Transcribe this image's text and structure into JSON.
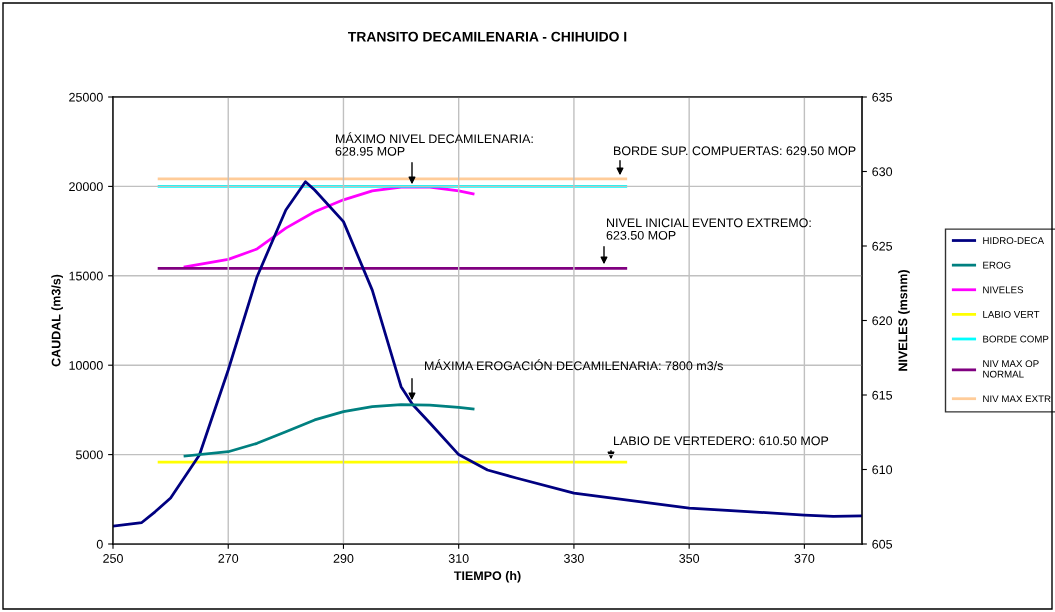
{
  "chart_data": {
    "type": "line",
    "title": "TRANSITO DECAMILENARIA - CHIHUIDO I",
    "xlabel": "TIEMPO (h)",
    "ylabel": "CAUDAL (m3/s)",
    "y2label": "NIVELES (msnm)",
    "xlim": [
      250,
      380
    ],
    "xticks": [
      250,
      270,
      290,
      310,
      330,
      350,
      370
    ],
    "ylim": [
      0,
      25000
    ],
    "yticks": [
      0,
      5000,
      10000,
      15000,
      20000,
      25000
    ],
    "y2lim": [
      605,
      635
    ],
    "y2ticks": [
      605,
      610,
      615,
      620,
      625,
      630,
      635
    ],
    "grid": true,
    "legend": "right",
    "marker": "none",
    "line_style": "solid",
    "series": [
      {
        "name": "HIDRO-DECA",
        "color": "#000080",
        "x": [
          250,
          255,
          257.3,
          260,
          265,
          270,
          275,
          280,
          283.4,
          285,
          290,
          295,
          300,
          302,
          305,
          310,
          315,
          320,
          330,
          350,
          370,
          375,
          380
        ],
        "values": [
          1000,
          1200,
          1800,
          2570,
          4980,
          9730,
          14950,
          18680,
          20260,
          19800,
          18030,
          14200,
          8800,
          7800,
          6770,
          5000,
          4140,
          3690,
          2850,
          2010,
          1620,
          1550,
          1570
        ]
      },
      {
        "name": "EROG",
        "color": "#008080",
        "x": [
          262.5,
          270,
          275,
          280,
          285,
          290,
          295,
          300,
          305,
          310,
          312.5
        ],
        "values": [
          4920,
          5160,
          5630,
          6280,
          6940,
          7400,
          7680,
          7800,
          7770,
          7640,
          7550
        ]
      },
      {
        "name": "NIVELES",
        "color": "#ff00ff",
        "axis": "y2",
        "x": [
          262.5,
          270,
          275,
          280,
          285,
          290,
          295,
          300,
          305,
          310,
          312.5
        ],
        "values": [
          623.6,
          624.1,
          624.8,
          626.2,
          627.3,
          628.1,
          628.7,
          628.95,
          628.95,
          628.7,
          628.5
        ]
      },
      {
        "name": "LABIO VERT",
        "color": "#ffff00",
        "axis": "y2",
        "x": [
          258,
          339
        ],
        "values": [
          610.5,
          610.5
        ]
      },
      {
        "name": "BORDE COMP",
        "color": "#00ffff",
        "axis": "y2",
        "x": [
          258,
          339
        ],
        "values": [
          629.0,
          629.0
        ]
      },
      {
        "name": "NIV MAX OP\nNORMAL",
        "color": "#800080",
        "axis": "y2",
        "x": [
          258,
          339
        ],
        "values": [
          623.5,
          623.5
        ]
      },
      {
        "name": "NIV MAX EXTR",
        "color": "#ffcc99",
        "axis": "y2",
        "x": [
          258,
          339
        ],
        "values": [
          629.5,
          629.5
        ]
      }
    ],
    "annotations": [
      "MÁXIMO NIVEL DECAMILENARIA:\n628.95 MOP",
      "BORDE SUP. COMPUERTAS: 629.50 MOP",
      "NIVEL INICIAL EVENTO EXTREMO:\n623.50 MOP",
      "MÁXIMA EROGACIÓN DECAMILENARIA: 7800 m3/s",
      "LABIO DE VERTEDERO: 610.50 MOP"
    ]
  }
}
